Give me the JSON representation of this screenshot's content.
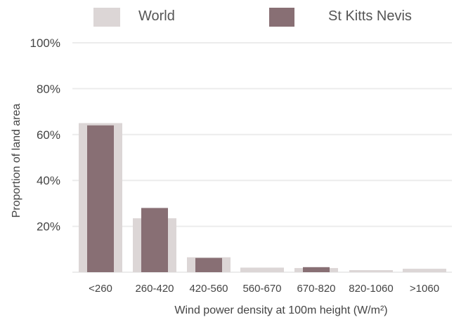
{
  "chart_data": {
    "type": "bar",
    "categories": [
      "<260",
      "260-420",
      "420-560",
      "560-670",
      "670-820",
      "820-1060",
      ">1060"
    ],
    "series": [
      {
        "name": "World",
        "values": [
          65,
          23.5,
          6.5,
          2,
          1.8,
          0.9,
          1.5
        ],
        "color": "#dcd6d6"
      },
      {
        "name": "St Kitts Nevis",
        "values": [
          64,
          28,
          6.2,
          0,
          2.2,
          0,
          0
        ],
        "color": "#886f74"
      }
    ],
    "y_ticks": [
      "100%",
      "80%",
      "60%",
      "40%",
      "20%"
    ],
    "y_tick_values": [
      100,
      80,
      60,
      40,
      20
    ],
    "xlabel": "Wind power density at 100m height (W/m²)",
    "ylabel": "Proportion of land area",
    "ylim": [
      0,
      100
    ],
    "grid": true,
    "legend_position": "top"
  }
}
